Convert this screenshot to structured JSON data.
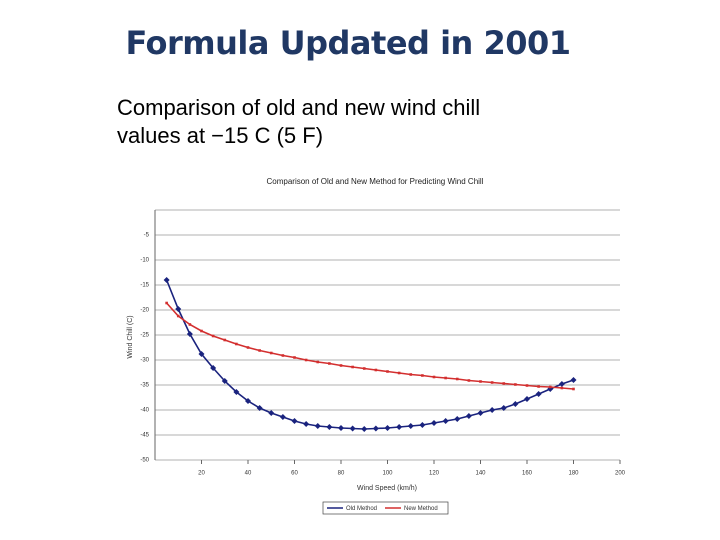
{
  "slide": {
    "title": "Formula Updated in 2001",
    "subtitle": "Comparison of old and new wind chill values at −15 C (5 F)"
  },
  "chart_data": {
    "type": "line",
    "title": "Comparison of Old and New Method for Predicting Wind Chill",
    "x_label": "Wind Speed (km/h)",
    "y_label": "Wind Chill (C)",
    "x": [
      5,
      10,
      15,
      20,
      25,
      30,
      35,
      40,
      45,
      50,
      55,
      60,
      65,
      70,
      75,
      80,
      85,
      90,
      95,
      100,
      105,
      110,
      115,
      120,
      125,
      130,
      135,
      140,
      145,
      150,
      155,
      160,
      165,
      170,
      175,
      180
    ],
    "series": [
      {
        "name": "Old Method",
        "color": "#1a237e",
        "marker": "diamond",
        "values": [
          -14,
          -19.8,
          -24.8,
          -28.8,
          -31.6,
          -34.2,
          -36.4,
          -38.2,
          -39.6,
          -40.6,
          -41.4,
          -42.2,
          -42.8,
          -43.2,
          -43.4,
          -43.6,
          -43.7,
          -43.8,
          -43.7,
          -43.6,
          -43.4,
          -43.2,
          -43,
          -42.6,
          -42.2,
          -41.8,
          -41.2,
          -40.6,
          -40,
          -39.6,
          -38.8,
          -37.8,
          -36.8,
          -35.8,
          -34.8,
          -34
        ]
      },
      {
        "name": "New Method",
        "color": "#d32f2f",
        "marker": "square",
        "values": [
          -18.6,
          -21.2,
          -22.9,
          -24.2,
          -25.2,
          -26,
          -26.8,
          -27.5,
          -28.1,
          -28.6,
          -29.1,
          -29.5,
          -30,
          -30.4,
          -30.7,
          -31.1,
          -31.4,
          -31.7,
          -32,
          -32.3,
          -32.6,
          -32.9,
          -33.1,
          -33.4,
          -33.6,
          -33.8,
          -34.1,
          -34.3,
          -34.5,
          -34.7,
          -34.9,
          -35.1,
          -35.3,
          -35.4,
          -35.6,
          -35.8
        ]
      }
    ],
    "xlim": [
      0,
      200
    ],
    "xticks": [
      20,
      40,
      60,
      80,
      100,
      120,
      140,
      160,
      180,
      200
    ],
    "ylim": [
      -50,
      0
    ],
    "yticks": [
      -5,
      -10,
      -15,
      -20,
      -25,
      -30,
      -35,
      -40,
      -45,
      -50
    ],
    "grid": true,
    "legend": "bottom"
  }
}
